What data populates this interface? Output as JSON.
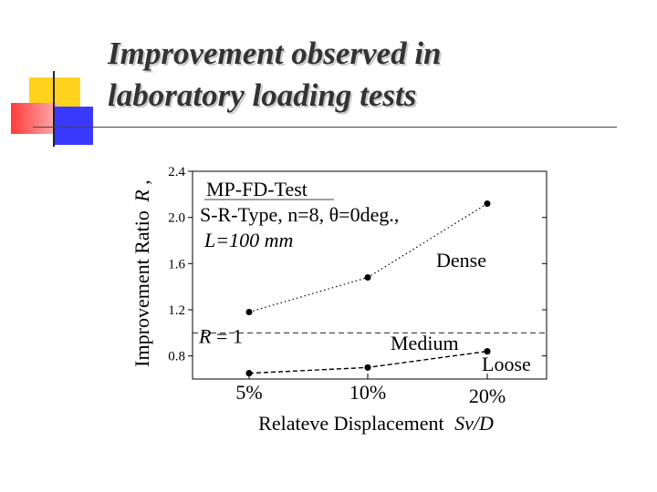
{
  "slide": {
    "title_line1": "Improvement observed in",
    "title_line2": "laboratory loading tests"
  },
  "colors": {
    "accent_yellow": "#ffd21e",
    "accent_red": "#ff3a3a",
    "accent_blue": "#3a3aff",
    "title_text": "#333333"
  },
  "chart_data": {
    "type": "line",
    "ylabel_main": "Improvement Ratio",
    "ylabel_symbol": "R",
    "xlabel_main": "Relateve Displacement",
    "xlabel_symbol": "Sv/D",
    "ylim": [
      0.6,
      2.4
    ],
    "yticks": [
      0.8,
      1.2,
      1.6,
      2.0,
      2.4
    ],
    "ytick_labels": [
      "0.8",
      "1.2",
      "1.6",
      "2.0",
      "2.4"
    ],
    "categories": [
      "5%",
      "10%",
      "20%"
    ],
    "series": [
      {
        "name": "Dense",
        "values": [
          1.18,
          1.48,
          2.12
        ],
        "line": "dotted"
      },
      {
        "name": "Medium",
        "values": [
          0.65,
          0.7,
          0.84
        ],
        "line": "dashed"
      },
      {
        "name": "Loose",
        "values": [
          0.65,
          0.7,
          0.84
        ],
        "line": "dashed"
      }
    ],
    "reference_line": {
      "value": 1.0,
      "label": "R = 1"
    },
    "info_box": {
      "line1": "MP-FD-Test",
      "line2": "S-R-Type, n=8, θ=0deg.,",
      "line3": "L=100 mm"
    },
    "series_labels": {
      "dense": "Dense",
      "medium": "Medium",
      "loose": "Loose"
    },
    "grid": false
  }
}
